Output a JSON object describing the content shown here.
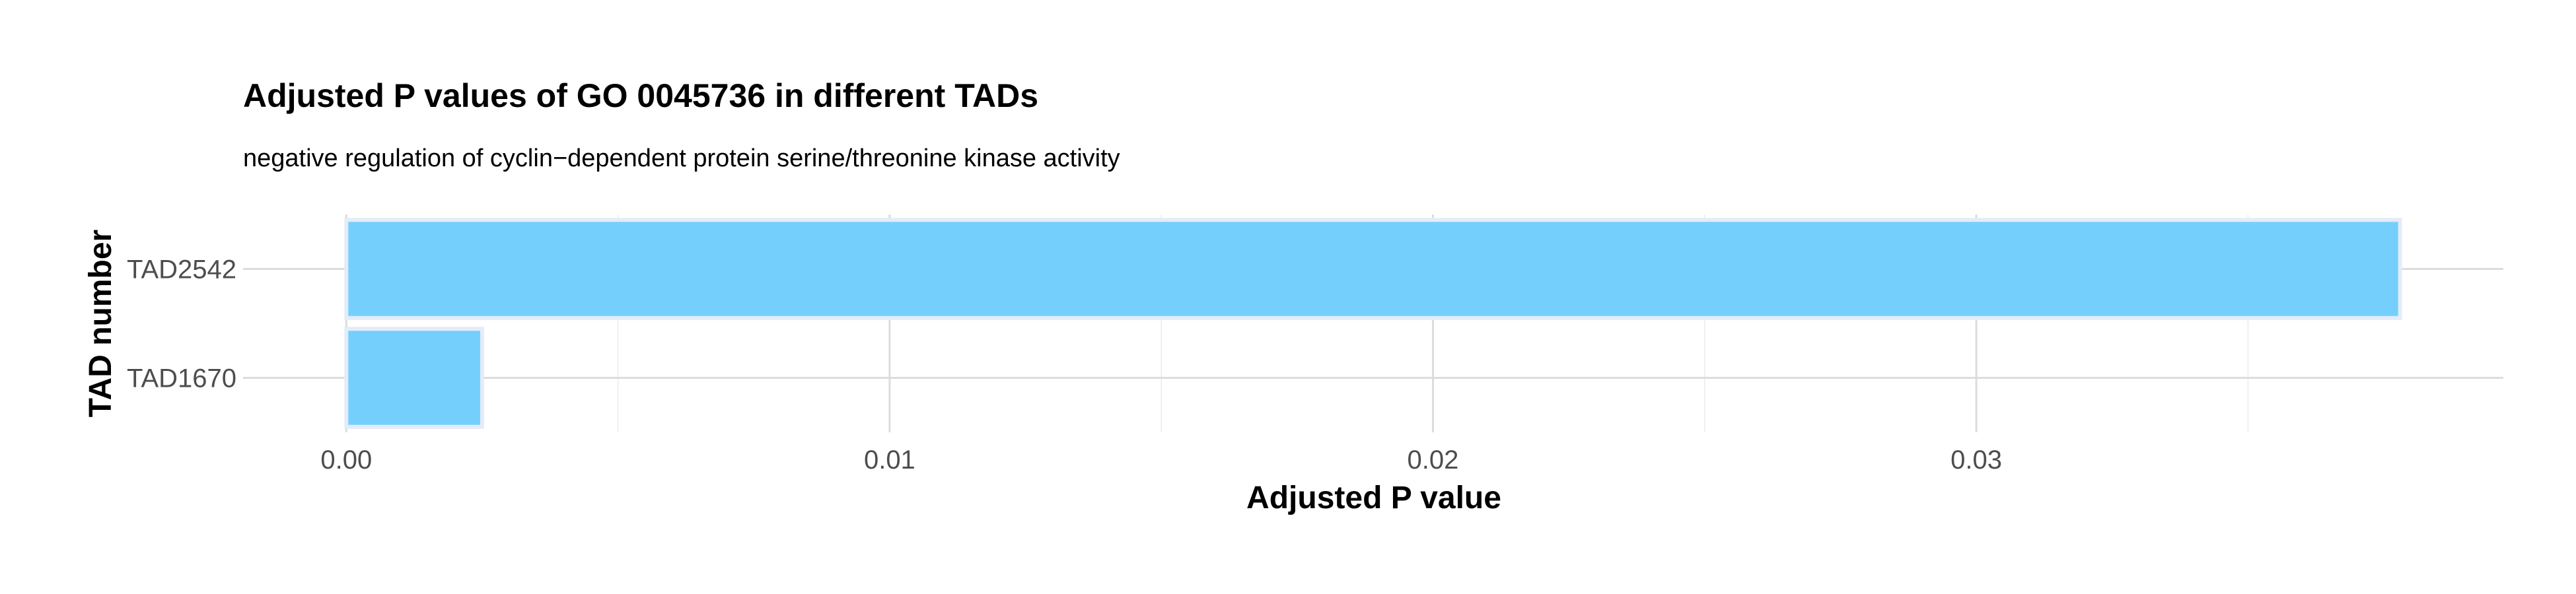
{
  "chart_data": {
    "type": "bar",
    "orientation": "horizontal",
    "title": "Adjusted P values of GO 0045736 in different TADs",
    "subtitle": "negative regulation of cyclin−dependent protein serine/threonine kinase activity",
    "xlabel": "Adjusted P value",
    "ylabel": "TAD number",
    "categories": [
      "TAD2542",
      "TAD1670"
    ],
    "values": [
      0.0378,
      0.0025
    ],
    "xlim": [
      -0.0019,
      0.0397
    ],
    "xticks": [
      0.0,
      0.01,
      0.02,
      0.03
    ],
    "xtick_labels": [
      "0.00",
      "0.01",
      "0.02",
      "0.03"
    ],
    "grid": true,
    "bar_color": "#74CFFD",
    "bar_edge_color": "#E3ECF8"
  }
}
